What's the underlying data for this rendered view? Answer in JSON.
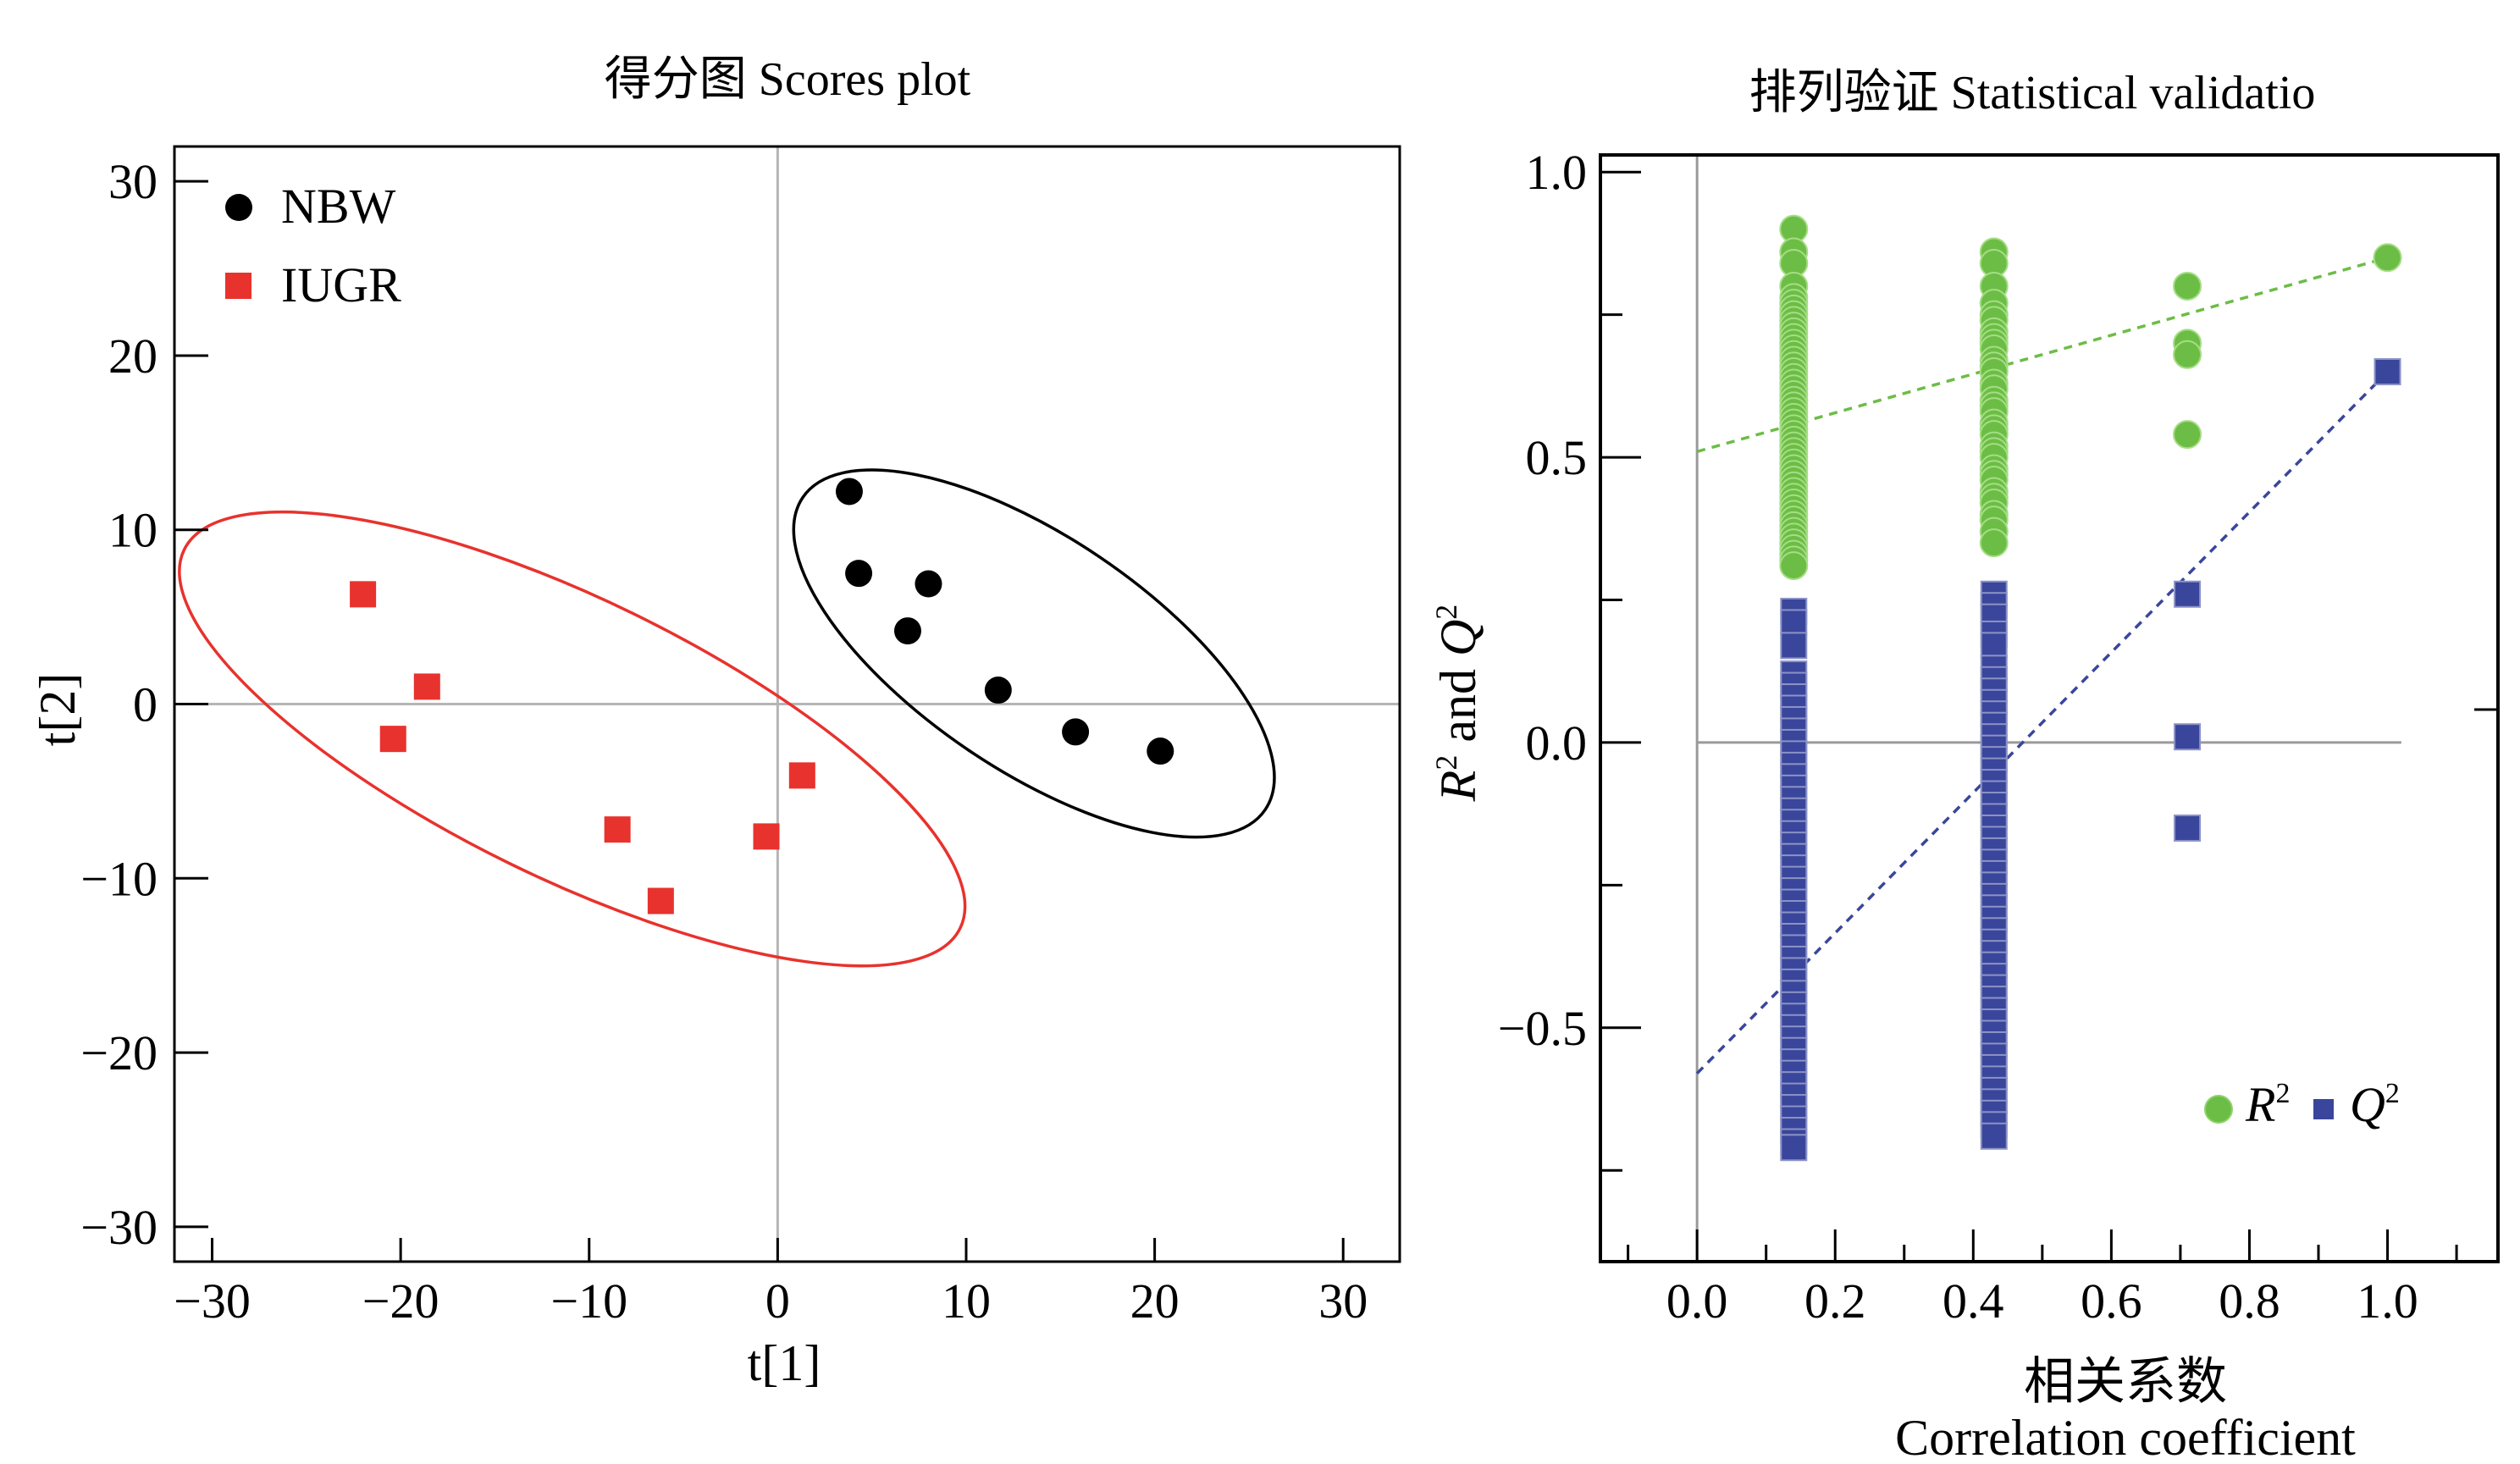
{
  "chart_data": [
    {
      "type": "scatter",
      "title": "得分图  Scores plot",
      "xlabel": "t[1]",
      "ylabel": "t[2]",
      "xlim": [
        -32,
        33
      ],
      "ylim": [
        -32,
        32
      ],
      "x_ticks": [
        {
          "v": -30,
          "label": "−30"
        },
        {
          "v": -20,
          "label": "−20"
        },
        {
          "v": -10,
          "label": "−10"
        },
        {
          "v": 0,
          "label": "0"
        },
        {
          "v": 10,
          "label": "10"
        },
        {
          "v": 20,
          "label": "20"
        },
        {
          "v": 30,
          "label": "30"
        }
      ],
      "y_ticks": [
        {
          "v": 30,
          "label": "30"
        },
        {
          "v": 20,
          "label": "20"
        },
        {
          "v": 10,
          "label": "10"
        },
        {
          "v": 0,
          "label": "0"
        },
        {
          "v": -10,
          "label": "−10"
        },
        {
          "v": -20,
          "label": "−20"
        },
        {
          "v": -30,
          "label": "−30"
        }
      ],
      "legend_position": "top-left",
      "series": [
        {
          "name": "NBW",
          "marker": "circle",
          "color": "#000000",
          "points": [
            [
              3.8,
              12.2
            ],
            [
              4.3,
              7.5
            ],
            [
              8.0,
              6.9
            ],
            [
              6.9,
              4.2
            ],
            [
              11.7,
              0.8
            ],
            [
              15.8,
              -1.6
            ],
            [
              20.3,
              -2.7
            ]
          ]
        },
        {
          "name": "IUGR",
          "marker": "square",
          "color": "#e8322d",
          "points": [
            [
              -22.0,
              6.3
            ],
            [
              -18.6,
              1.0
            ],
            [
              -20.4,
              -2.0
            ],
            [
              1.3,
              -4.1
            ],
            [
              -8.5,
              -7.2
            ],
            [
              -0.6,
              -7.6
            ],
            [
              -6.2,
              -11.3
            ]
          ]
        }
      ],
      "ellipses": [
        {
          "series": "NBW",
          "color": "#000000",
          "center": [
            13.6,
            2.9
          ],
          "semi_axes": [
            14.8,
            6.7
          ],
          "angle_deg": -34
        },
        {
          "series": "IUGR",
          "color": "#e8322d",
          "center": [
            -10.9,
            -2.0
          ],
          "semi_axes": [
            22.9,
            8.0
          ],
          "angle_deg": -26
        }
      ],
      "reference_lines": {
        "x": 0,
        "y": 0
      }
    },
    {
      "type": "scatter",
      "title": "排列验证  Statistical validatio",
      "xlabel": "相关系数",
      "xlabel2": "Correlation coefficient",
      "ylabel_parts": [
        "R",
        "2",
        " and ",
        "Q",
        "2"
      ],
      "xlim": [
        -0.14,
        1.16
      ],
      "ylim": [
        -0.91,
        1.03
      ],
      "x_ticks": [
        {
          "v": 0.0,
          "label": "0.0"
        },
        {
          "v": 0.2,
          "label": "0.2"
        },
        {
          "v": 0.4,
          "label": "0.4"
        },
        {
          "v": 0.6,
          "label": "0.6"
        },
        {
          "v": 0.8,
          "label": "0.8"
        },
        {
          "v": 1.0,
          "label": "1.0"
        }
      ],
      "y_ticks": [
        {
          "v": 1.0,
          "label": "1.0"
        },
        {
          "v": 0.5,
          "label": "0.5"
        },
        {
          "v": 0.0,
          "label": "0.0"
        },
        {
          "v": -0.5,
          "label": "−0.5"
        }
      ],
      "legend_position": "bottom-right",
      "legend": [
        {
          "label_main": "R",
          "label_sup": "2",
          "marker": "circle",
          "color": "#6cbd45"
        },
        {
          "label_main": "Q",
          "label_sup": "2",
          "marker": "square",
          "color": "#3a469b"
        }
      ],
      "series": [
        {
          "name": "R2",
          "marker": "circle",
          "color": "#6cbd45",
          "columns": [
            {
              "x": 0.14,
              "values": [
                0.9,
                0.86,
                0.84,
                0.8,
                0.78,
                0.77,
                0.76,
                0.75,
                0.74,
                0.73,
                0.72,
                0.71,
                0.7,
                0.69,
                0.68,
                0.67,
                0.66,
                0.65,
                0.64,
                0.63,
                0.62,
                0.61,
                0.6,
                0.59,
                0.58,
                0.57,
                0.56,
                0.55,
                0.54,
                0.53,
                0.52,
                0.51,
                0.5,
                0.49,
                0.48,
                0.47,
                0.46,
                0.45,
                0.44,
                0.43,
                0.42,
                0.41,
                0.4,
                0.39,
                0.38,
                0.37,
                0.36,
                0.35,
                0.34,
                0.33,
                0.32,
                0.31
              ]
            },
            {
              "x": 0.43,
              "values": [
                0.86,
                0.84,
                0.8,
                0.77,
                0.75,
                0.74,
                0.72,
                0.71,
                0.7,
                0.69,
                0.67,
                0.66,
                0.65,
                0.63,
                0.62,
                0.6,
                0.59,
                0.58,
                0.56,
                0.55,
                0.54,
                0.52,
                0.51,
                0.5,
                0.48,
                0.47,
                0.46,
                0.44,
                0.43,
                0.42,
                0.4,
                0.39,
                0.37,
                0.35
              ]
            },
            {
              "x": 0.71,
              "values": [
                0.8,
                0.7,
                0.68,
                0.54
              ]
            },
            {
              "x": 1.0,
              "values": [
                0.85
              ]
            }
          ]
        },
        {
          "name": "Q2",
          "marker": "square",
          "color": "#3a469b",
          "columns": [
            {
              "x": 0.14,
              "values": [
                0.23,
                0.21,
                0.17,
                0.12,
                0.1,
                0.08,
                0.06,
                0.04,
                0.02,
                0.0,
                -0.02,
                -0.04,
                -0.06,
                -0.08,
                -0.1,
                -0.12,
                -0.14,
                -0.16,
                -0.18,
                -0.2,
                -0.22,
                -0.24,
                -0.26,
                -0.28,
                -0.3,
                -0.32,
                -0.34,
                -0.36,
                -0.38,
                -0.4,
                -0.42,
                -0.44,
                -0.46,
                -0.48,
                -0.5,
                -0.52,
                -0.54,
                -0.56,
                -0.58,
                -0.6,
                -0.62,
                -0.64,
                -0.66,
                -0.68,
                -0.7,
                -0.71
              ]
            },
            {
              "x": 0.43,
              "values": [
                0.26,
                0.24,
                0.22,
                0.19,
                0.17,
                0.13,
                0.11,
                0.09,
                0.07,
                0.05,
                0.03,
                0.01,
                -0.01,
                -0.03,
                -0.05,
                -0.07,
                -0.09,
                -0.11,
                -0.13,
                -0.15,
                -0.17,
                -0.19,
                -0.21,
                -0.23,
                -0.25,
                -0.27,
                -0.29,
                -0.31,
                -0.33,
                -0.35,
                -0.37,
                -0.39,
                -0.41,
                -0.43,
                -0.45,
                -0.47,
                -0.49,
                -0.51,
                -0.53,
                -0.55,
                -0.57,
                -0.59,
                -0.61,
                -0.63,
                -0.65,
                -0.67,
                -0.69
              ]
            },
            {
              "x": 0.71,
              "values": [
                0.26,
                0.01,
                -0.15
              ]
            },
            {
              "x": 1.0,
              "values": [
                0.65
              ]
            }
          ]
        }
      ],
      "trend_lines": [
        {
          "series": "R2",
          "color": "#6cbd45",
          "from": [
            0.0,
            0.51
          ],
          "to": [
            1.0,
            0.85
          ]
        },
        {
          "series": "Q2",
          "color": "#3a469b",
          "from": [
            0.0,
            -0.58
          ],
          "to": [
            1.0,
            0.65
          ]
        }
      ],
      "reference_lines": {
        "x": 0,
        "y": 0
      }
    }
  ]
}
